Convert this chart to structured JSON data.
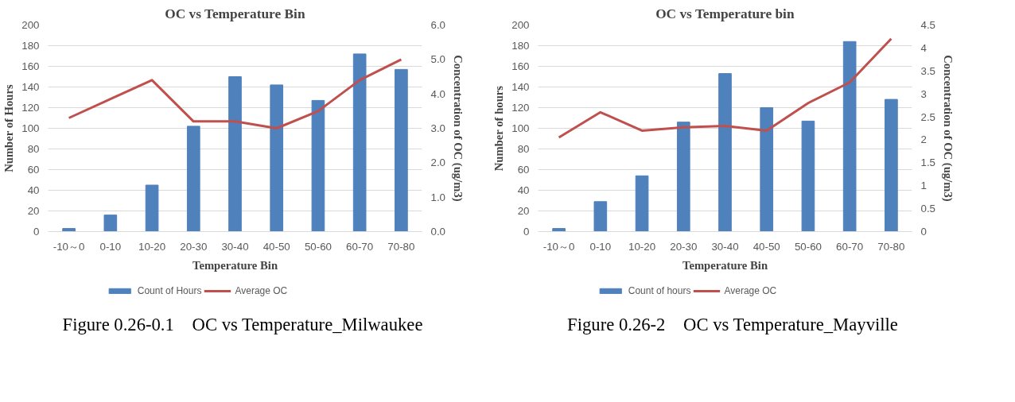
{
  "chart_data": [
    {
      "type": "bar",
      "title": "OC vs Temperature Bin",
      "xlabel": "Temperature Bin",
      "ylabel": "Number of Hours",
      "y2label": "Concentration of OC (ug/m3)",
      "categories": [
        "-10～0",
        "0-10",
        "10-20",
        "20-30",
        "30-40",
        "40-50",
        "50-60",
        "60-70",
        "70-80"
      ],
      "series": [
        {
          "name": "Count of Hours",
          "type": "bar",
          "color": "#4f81bd",
          "values": [
            3,
            16,
            45,
            102,
            150,
            142,
            127,
            172,
            157
          ]
        },
        {
          "name": "Average OC",
          "type": "line",
          "axis": "y2",
          "color": "#c0504d",
          "values": [
            3.3,
            3.85,
            4.4,
            3.2,
            3.2,
            3.0,
            3.5,
            4.4,
            5.0
          ]
        }
      ],
      "ylim": [
        0,
        200
      ],
      "yticks": [
        0,
        20,
        40,
        60,
        80,
        100,
        120,
        140,
        160,
        180,
        200
      ],
      "y2lim": [
        0,
        6
      ],
      "y2ticks": [
        {
          "value": 0,
          "label": "0.0"
        },
        {
          "value": 1,
          "label": "1.0"
        },
        {
          "value": 2,
          "label": "2.0"
        },
        {
          "value": 3,
          "label": "3.0"
        },
        {
          "value": 4,
          "label": "4.0"
        },
        {
          "value": 5,
          "label": "5.0"
        },
        {
          "value": 6,
          "label": "6.0"
        }
      ],
      "grid": "y",
      "legend": "bottom",
      "marker": "none",
      "line_style": "solid",
      "annotations": [
        "Figure 0.26-0.1    OC vs Temperature_Milwaukee"
      ]
    },
    {
      "type": "bar",
      "title": "OC vs Temperature bin",
      "xlabel": "Temperature Bin",
      "ylabel": "Number of hours",
      "y2label": "Concentration of OC (ug/m3)",
      "categories": [
        "-10～0",
        "0-10",
        "10-20",
        "20-30",
        "30-40",
        "40-50",
        "50-60",
        "60-70",
        "70-80"
      ],
      "series": [
        {
          "name": "Count of hours",
          "type": "bar",
          "color": "#4f81bd",
          "values": [
            3,
            29,
            54,
            106,
            153,
            120,
            107,
            184,
            128
          ]
        },
        {
          "name": "Average OC",
          "type": "line",
          "axis": "y2",
          "color": "#c0504d",
          "values": [
            2.05,
            2.6,
            2.2,
            2.27,
            2.3,
            2.2,
            2.8,
            3.25,
            4.2
          ]
        }
      ],
      "ylim": [
        0,
        200
      ],
      "yticks": [
        0,
        20,
        40,
        60,
        80,
        100,
        120,
        140,
        160,
        180,
        200
      ],
      "y2lim": [
        0,
        4.5
      ],
      "y2ticks": [
        0,
        0.5,
        1,
        1.5,
        2,
        2.5,
        3,
        3.5,
        4,
        4.5
      ],
      "grid": "y",
      "legend": "bottom",
      "marker": "none",
      "line_style": "solid",
      "annotations": [
        "Figure 0.26-2    OC vs Temperature_Mayville"
      ]
    }
  ]
}
